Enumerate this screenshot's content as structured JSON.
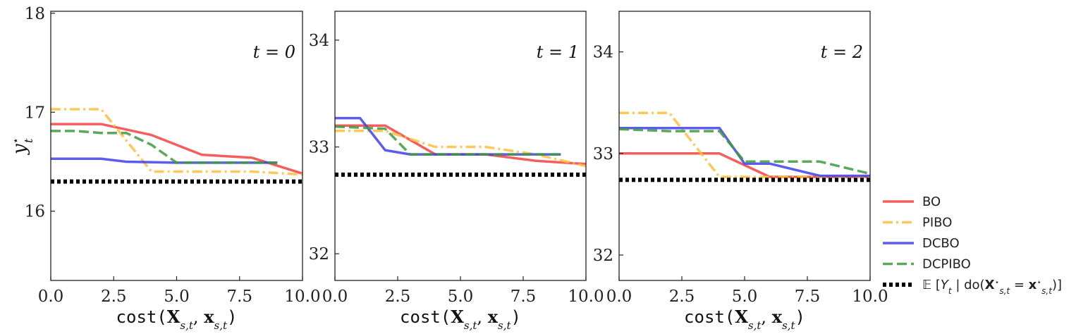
{
  "chart_data": [
    {
      "type": "line",
      "annotation": "t = 0",
      "xlabel": "cost(X_{s,t}, x_{s,t})",
      "ylabel": "y*_t",
      "xlim": [
        0,
        10
      ],
      "ylim": [
        15.3,
        18.02
      ],
      "xticks": [
        "0.0",
        "2.5",
        "5.0",
        "7.5",
        "10.0"
      ],
      "yticks": [
        16,
        17,
        18
      ],
      "series": [
        {
          "name": "BO",
          "color": "#f44242",
          "dash": "solid",
          "x": [
            0,
            2,
            4,
            6,
            8,
            10
          ],
          "y": [
            16.88,
            16.88,
            16.77,
            16.57,
            16.54,
            16.38
          ]
        },
        {
          "name": "PIBO",
          "color": "#ffbe3c",
          "dash": "dashdot",
          "x": [
            0,
            2,
            4,
            6,
            8,
            10
          ],
          "y": [
            17.03,
            17.03,
            16.4,
            16.4,
            16.4,
            16.37
          ]
        },
        {
          "name": "DCBO",
          "color": "#4040ee",
          "dash": "solid",
          "x": [
            0,
            2,
            3,
            5,
            7,
            9
          ],
          "y": [
            16.53,
            16.53,
            16.5,
            16.49,
            16.49,
            16.49
          ]
        },
        {
          "name": "DCPIBO",
          "color": "#3d9a3d",
          "dash": "dashed",
          "x": [
            0,
            1,
            2,
            3,
            4,
            5,
            7,
            9
          ],
          "y": [
            16.81,
            16.81,
            16.79,
            16.79,
            16.67,
            16.49,
            16.49,
            16.49
          ]
        },
        {
          "name": "E[Y_t | do(X*_{s,t} = x*_{s,t})]",
          "color": "#000000",
          "dash": "dotted",
          "x": [
            0,
            10
          ],
          "y": [
            16.3,
            16.3
          ]
        }
      ]
    },
    {
      "type": "line",
      "annotation": "t = 1",
      "xlabel": "cost(X_{s,t}, x_{s,t})",
      "ylabel": "",
      "xlim": [
        0,
        10
      ],
      "ylim": [
        31.75,
        34.27
      ],
      "xticks": [
        "0.0",
        "2.5",
        "5.0",
        "7.5",
        "10.0"
      ],
      "yticks": [
        32,
        33,
        34
      ],
      "series": [
        {
          "name": "BO",
          "color": "#f44242",
          "dash": "solid",
          "x": [
            0,
            2,
            4,
            6,
            8,
            10
          ],
          "y": [
            33.2,
            33.2,
            32.93,
            32.93,
            32.87,
            32.84
          ]
        },
        {
          "name": "PIBO",
          "color": "#ffbe3c",
          "dash": "dashdot",
          "x": [
            0,
            2,
            4,
            6,
            8,
            10
          ],
          "y": [
            33.15,
            33.15,
            33.0,
            33.0,
            32.93,
            32.82
          ]
        },
        {
          "name": "DCBO",
          "color": "#4040ee",
          "dash": "solid",
          "x": [
            0,
            1,
            2,
            3,
            5,
            7,
            9
          ],
          "y": [
            33.27,
            33.27,
            32.97,
            32.93,
            32.93,
            32.93,
            32.93
          ]
        },
        {
          "name": "DCPIBO",
          "color": "#3d9a3d",
          "dash": "dashed",
          "x": [
            0,
            2,
            3,
            5,
            7,
            9
          ],
          "y": [
            33.19,
            33.17,
            32.93,
            32.93,
            32.93,
            32.93
          ]
        },
        {
          "name": "E[Y_t | do(X*_{s,t} = x*_{s,t})]",
          "color": "#000000",
          "dash": "dotted",
          "x": [
            0,
            10
          ],
          "y": [
            32.74,
            32.74
          ]
        }
      ]
    },
    {
      "type": "line",
      "annotation": "t = 2",
      "xlabel": "cost(X_{s,t}, x_{s,t})",
      "ylabel": "",
      "xlim": [
        0,
        10
      ],
      "ylim": [
        31.75,
        34.4
      ],
      "xticks": [
        "0.0",
        "2.5",
        "5.0",
        "7.5",
        "10.0"
      ],
      "yticks": [
        32,
        33,
        34
      ],
      "series": [
        {
          "name": "BO",
          "color": "#f44242",
          "dash": "solid",
          "x": [
            0,
            2,
            4,
            6,
            8,
            10
          ],
          "y": [
            33.0,
            33.0,
            33.0,
            32.77,
            32.77,
            32.77
          ]
        },
        {
          "name": "PIBO",
          "color": "#ffbe3c",
          "dash": "dashdot",
          "x": [
            0,
            2,
            4,
            6,
            8,
            10
          ],
          "y": [
            33.4,
            33.4,
            32.77,
            32.77,
            32.77,
            32.77
          ]
        },
        {
          "name": "DCBO",
          "color": "#4040ee",
          "dash": "solid",
          "x": [
            0,
            2,
            4,
            5,
            6,
            8,
            10
          ],
          "y": [
            33.25,
            33.25,
            33.25,
            32.9,
            32.9,
            32.78,
            32.78
          ]
        },
        {
          "name": "DCPIBO",
          "color": "#3d9a3d",
          "dash": "dashed",
          "x": [
            0,
            2,
            4,
            5,
            6,
            8,
            10
          ],
          "y": [
            33.24,
            33.22,
            33.22,
            32.92,
            32.92,
            32.92,
            32.8
          ]
        },
        {
          "name": "E[Y_t | do(X*_{s,t} = x*_{s,t})]",
          "color": "#000000",
          "dash": "dotted",
          "x": [
            0,
            10
          ],
          "y": [
            32.74,
            32.74
          ]
        }
      ]
    }
  ],
  "legend": {
    "placement": "right",
    "entries": [
      {
        "label": "BO",
        "color": "#f44242",
        "dash": "solid"
      },
      {
        "label": "PIBO",
        "color": "#ffbe3c",
        "dash": "dashdot"
      },
      {
        "label": "DCBO",
        "color": "#4040ee",
        "dash": "solid"
      },
      {
        "label": "DCPIBO",
        "color": "#3d9a3d",
        "dash": "dashed"
      },
      {
        "label": "E[Y_t | do(X*_{s,t} = x*_{s,t})]",
        "color": "#000000",
        "dash": "dotted"
      }
    ]
  }
}
